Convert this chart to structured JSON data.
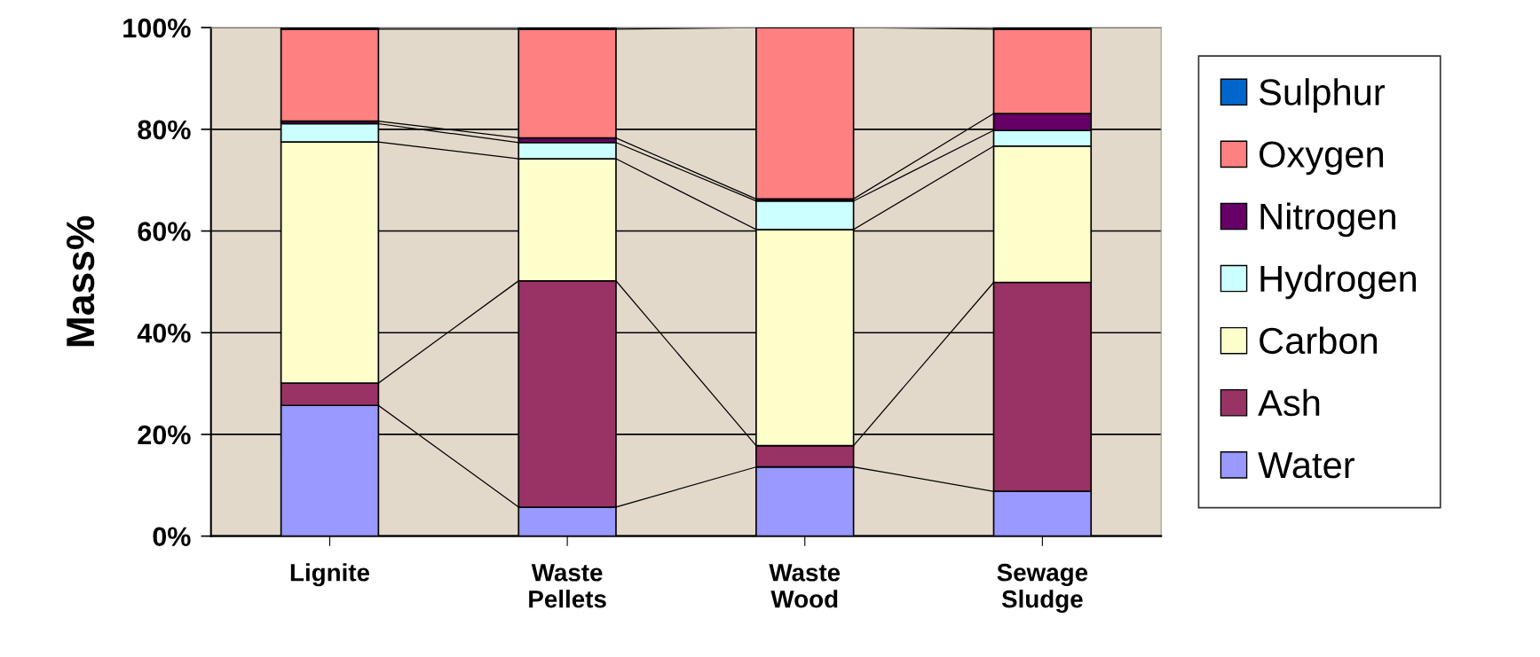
{
  "chart_data": {
    "type": "bar",
    "stacked": true,
    "ylabel": "Mass%",
    "categories": [
      "Lignite",
      "Waste\nPellets",
      "Waste\nWood",
      "Sewage\nSludge"
    ],
    "series": [
      {
        "name": "Water",
        "color": "#9999ff",
        "values": [
          25.7,
          5.7,
          13.6,
          8.8
        ]
      },
      {
        "name": "Ash",
        "color": "#993366",
        "values": [
          4.4,
          44.5,
          4.2,
          41.1
        ]
      },
      {
        "name": "Carbon",
        "color": "#ffffcc",
        "values": [
          47.4,
          24.0,
          42.5,
          26.8
        ]
      },
      {
        "name": "Hydrogen",
        "color": "#ccffff",
        "values": [
          3.6,
          3.2,
          5.6,
          3.1
        ]
      },
      {
        "name": "Nitrogen",
        "color": "#660066",
        "values": [
          0.5,
          0.9,
          0.4,
          3.3
        ]
      },
      {
        "name": "Oxygen",
        "color": "#ff8080",
        "values": [
          18.1,
          21.4,
          33.7,
          16.6
        ]
      },
      {
        "name": "Sulphur",
        "color": "#0066cc",
        "values": [
          0.3,
          0.3,
          0,
          0.3
        ]
      }
    ],
    "ylim": [
      0,
      100
    ],
    "yticks": [
      {
        "value": 0,
        "label": "0%"
      },
      {
        "value": 20,
        "label": "20%"
      },
      {
        "value": 40,
        "label": "40%"
      },
      {
        "value": 60,
        "label": "60%"
      },
      {
        "value": 80,
        "label": "80%"
      },
      {
        "value": 100,
        "label": "100%"
      }
    ],
    "grid": "y",
    "legend": "right"
  }
}
